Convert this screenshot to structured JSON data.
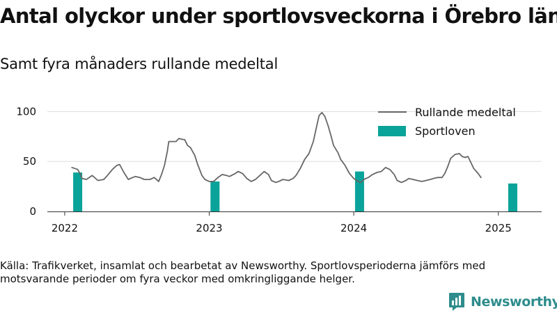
{
  "title": "Antal olyckor under sportlovsveckorna i Örebro län",
  "subtitle": "Samt fyra månaders rullande medeltal",
  "source": "Källa: Trafikverket, insamlat och bearbetat av Newsworthy. Sportlovsperioderna jämförs med motsvarande perioder om fyra veckor med omkringliggande helger.",
  "logo": {
    "text": "Newsworthy",
    "icon": "newsworthy-chart-logo-icon",
    "color": "#2e8c8c"
  },
  "chart_data": {
    "type": "bar+line",
    "ylim": [
      0,
      110
    ],
    "xlim": [
      2021.88,
      2025.3
    ],
    "y_ticks": [
      0,
      50,
      100
    ],
    "x_ticks": [
      2022,
      2023,
      2024,
      2025
    ],
    "x_tick_labels": [
      "2022",
      "2023",
      "2024",
      "2025"
    ],
    "grid": true,
    "legend_position": "top-right",
    "colors": {
      "line": "#666666",
      "bars": "#0aa39a",
      "grid": "#dddddd",
      "axis": "#333333"
    },
    "series": [
      {
        "name": "Rullande medeltal",
        "type": "line",
        "points": [
          [
            2022.05,
            44
          ],
          [
            2022.07,
            43
          ],
          [
            2022.09,
            42
          ],
          [
            2022.11,
            37
          ],
          [
            2022.12,
            33
          ],
          [
            2022.15,
            32
          ],
          [
            2022.19,
            36
          ],
          [
            2022.23,
            31
          ],
          [
            2022.27,
            32
          ],
          [
            2022.29,
            35
          ],
          [
            2022.33,
            42
          ],
          [
            2022.36,
            46
          ],
          [
            2022.38,
            47
          ],
          [
            2022.41,
            39
          ],
          [
            2022.44,
            32
          ],
          [
            2022.47,
            34
          ],
          [
            2022.49,
            35
          ],
          [
            2022.52,
            34
          ],
          [
            2022.55,
            32
          ],
          [
            2022.59,
            32
          ],
          [
            2022.62,
            34
          ],
          [
            2022.65,
            30
          ],
          [
            2022.67,
            37
          ],
          [
            2022.69,
            46
          ],
          [
            2022.71,
            60
          ],
          [
            2022.72,
            70
          ],
          [
            2022.75,
            70
          ],
          [
            2022.77,
            70
          ],
          [
            2022.79,
            73
          ],
          [
            2022.82,
            72
          ],
          [
            2022.83,
            72
          ],
          [
            2022.85,
            66
          ],
          [
            2022.87,
            64
          ],
          [
            2022.9,
            56
          ],
          [
            2022.92,
            47
          ],
          [
            2022.95,
            36
          ],
          [
            2022.97,
            32
          ],
          [
            2023.0,
            30
          ],
          [
            2023.03,
            30
          ],
          [
            2023.06,
            34
          ],
          [
            2023.09,
            37
          ],
          [
            2023.12,
            36
          ],
          [
            2023.14,
            35
          ],
          [
            2023.18,
            38
          ],
          [
            2023.2,
            40
          ],
          [
            2023.23,
            38
          ],
          [
            2023.26,
            33
          ],
          [
            2023.29,
            30
          ],
          [
            2023.32,
            32
          ],
          [
            2023.35,
            36
          ],
          [
            2023.38,
            40
          ],
          [
            2023.41,
            37
          ],
          [
            2023.43,
            31
          ],
          [
            2023.46,
            29
          ],
          [
            2023.48,
            30
          ],
          [
            2023.51,
            32
          ],
          [
            2023.55,
            31
          ],
          [
            2023.58,
            33
          ],
          [
            2023.6,
            36
          ],
          [
            2023.63,
            43
          ],
          [
            2023.66,
            52
          ],
          [
            2023.69,
            58
          ],
          [
            2023.72,
            70
          ],
          [
            2023.74,
            83
          ],
          [
            2023.76,
            96
          ],
          [
            2023.78,
            99
          ],
          [
            2023.8,
            95
          ],
          [
            2023.82,
            87
          ],
          [
            2023.84,
            77
          ],
          [
            2023.86,
            66
          ],
          [
            2023.89,
            59
          ],
          [
            2023.91,
            52
          ],
          [
            2023.94,
            46
          ],
          [
            2023.97,
            38
          ],
          [
            2024.0,
            33
          ],
          [
            2024.03,
            30
          ],
          [
            2024.05,
            29
          ],
          [
            2024.07,
            32
          ],
          [
            2024.1,
            34
          ],
          [
            2024.13,
            37
          ],
          [
            2024.16,
            39
          ],
          [
            2024.19,
            40
          ],
          [
            2024.22,
            44
          ],
          [
            2024.25,
            42
          ],
          [
            2024.28,
            37
          ],
          [
            2024.3,
            31
          ],
          [
            2024.33,
            29
          ],
          [
            2024.36,
            31
          ],
          [
            2024.38,
            33
          ],
          [
            2024.41,
            32
          ],
          [
            2024.44,
            31
          ],
          [
            2024.47,
            30
          ],
          [
            2024.5,
            31
          ],
          [
            2024.53,
            32
          ],
          [
            2024.55,
            33
          ],
          [
            2024.58,
            34
          ],
          [
            2024.61,
            34
          ],
          [
            2024.63,
            38
          ],
          [
            2024.65,
            45
          ],
          [
            2024.67,
            53
          ],
          [
            2024.7,
            57
          ],
          [
            2024.73,
            58
          ],
          [
            2024.75,
            55
          ],
          [
            2024.77,
            54
          ],
          [
            2024.79,
            55
          ],
          [
            2024.81,
            49
          ],
          [
            2024.83,
            43
          ],
          [
            2024.86,
            38
          ],
          [
            2024.88,
            34
          ]
        ]
      },
      {
        "name": "Sportloven",
        "type": "bar",
        "points": [
          [
            2022.09,
            39
          ],
          [
            2023.04,
            30
          ],
          [
            2024.04,
            40
          ],
          [
            2025.1,
            28
          ]
        ]
      }
    ]
  }
}
